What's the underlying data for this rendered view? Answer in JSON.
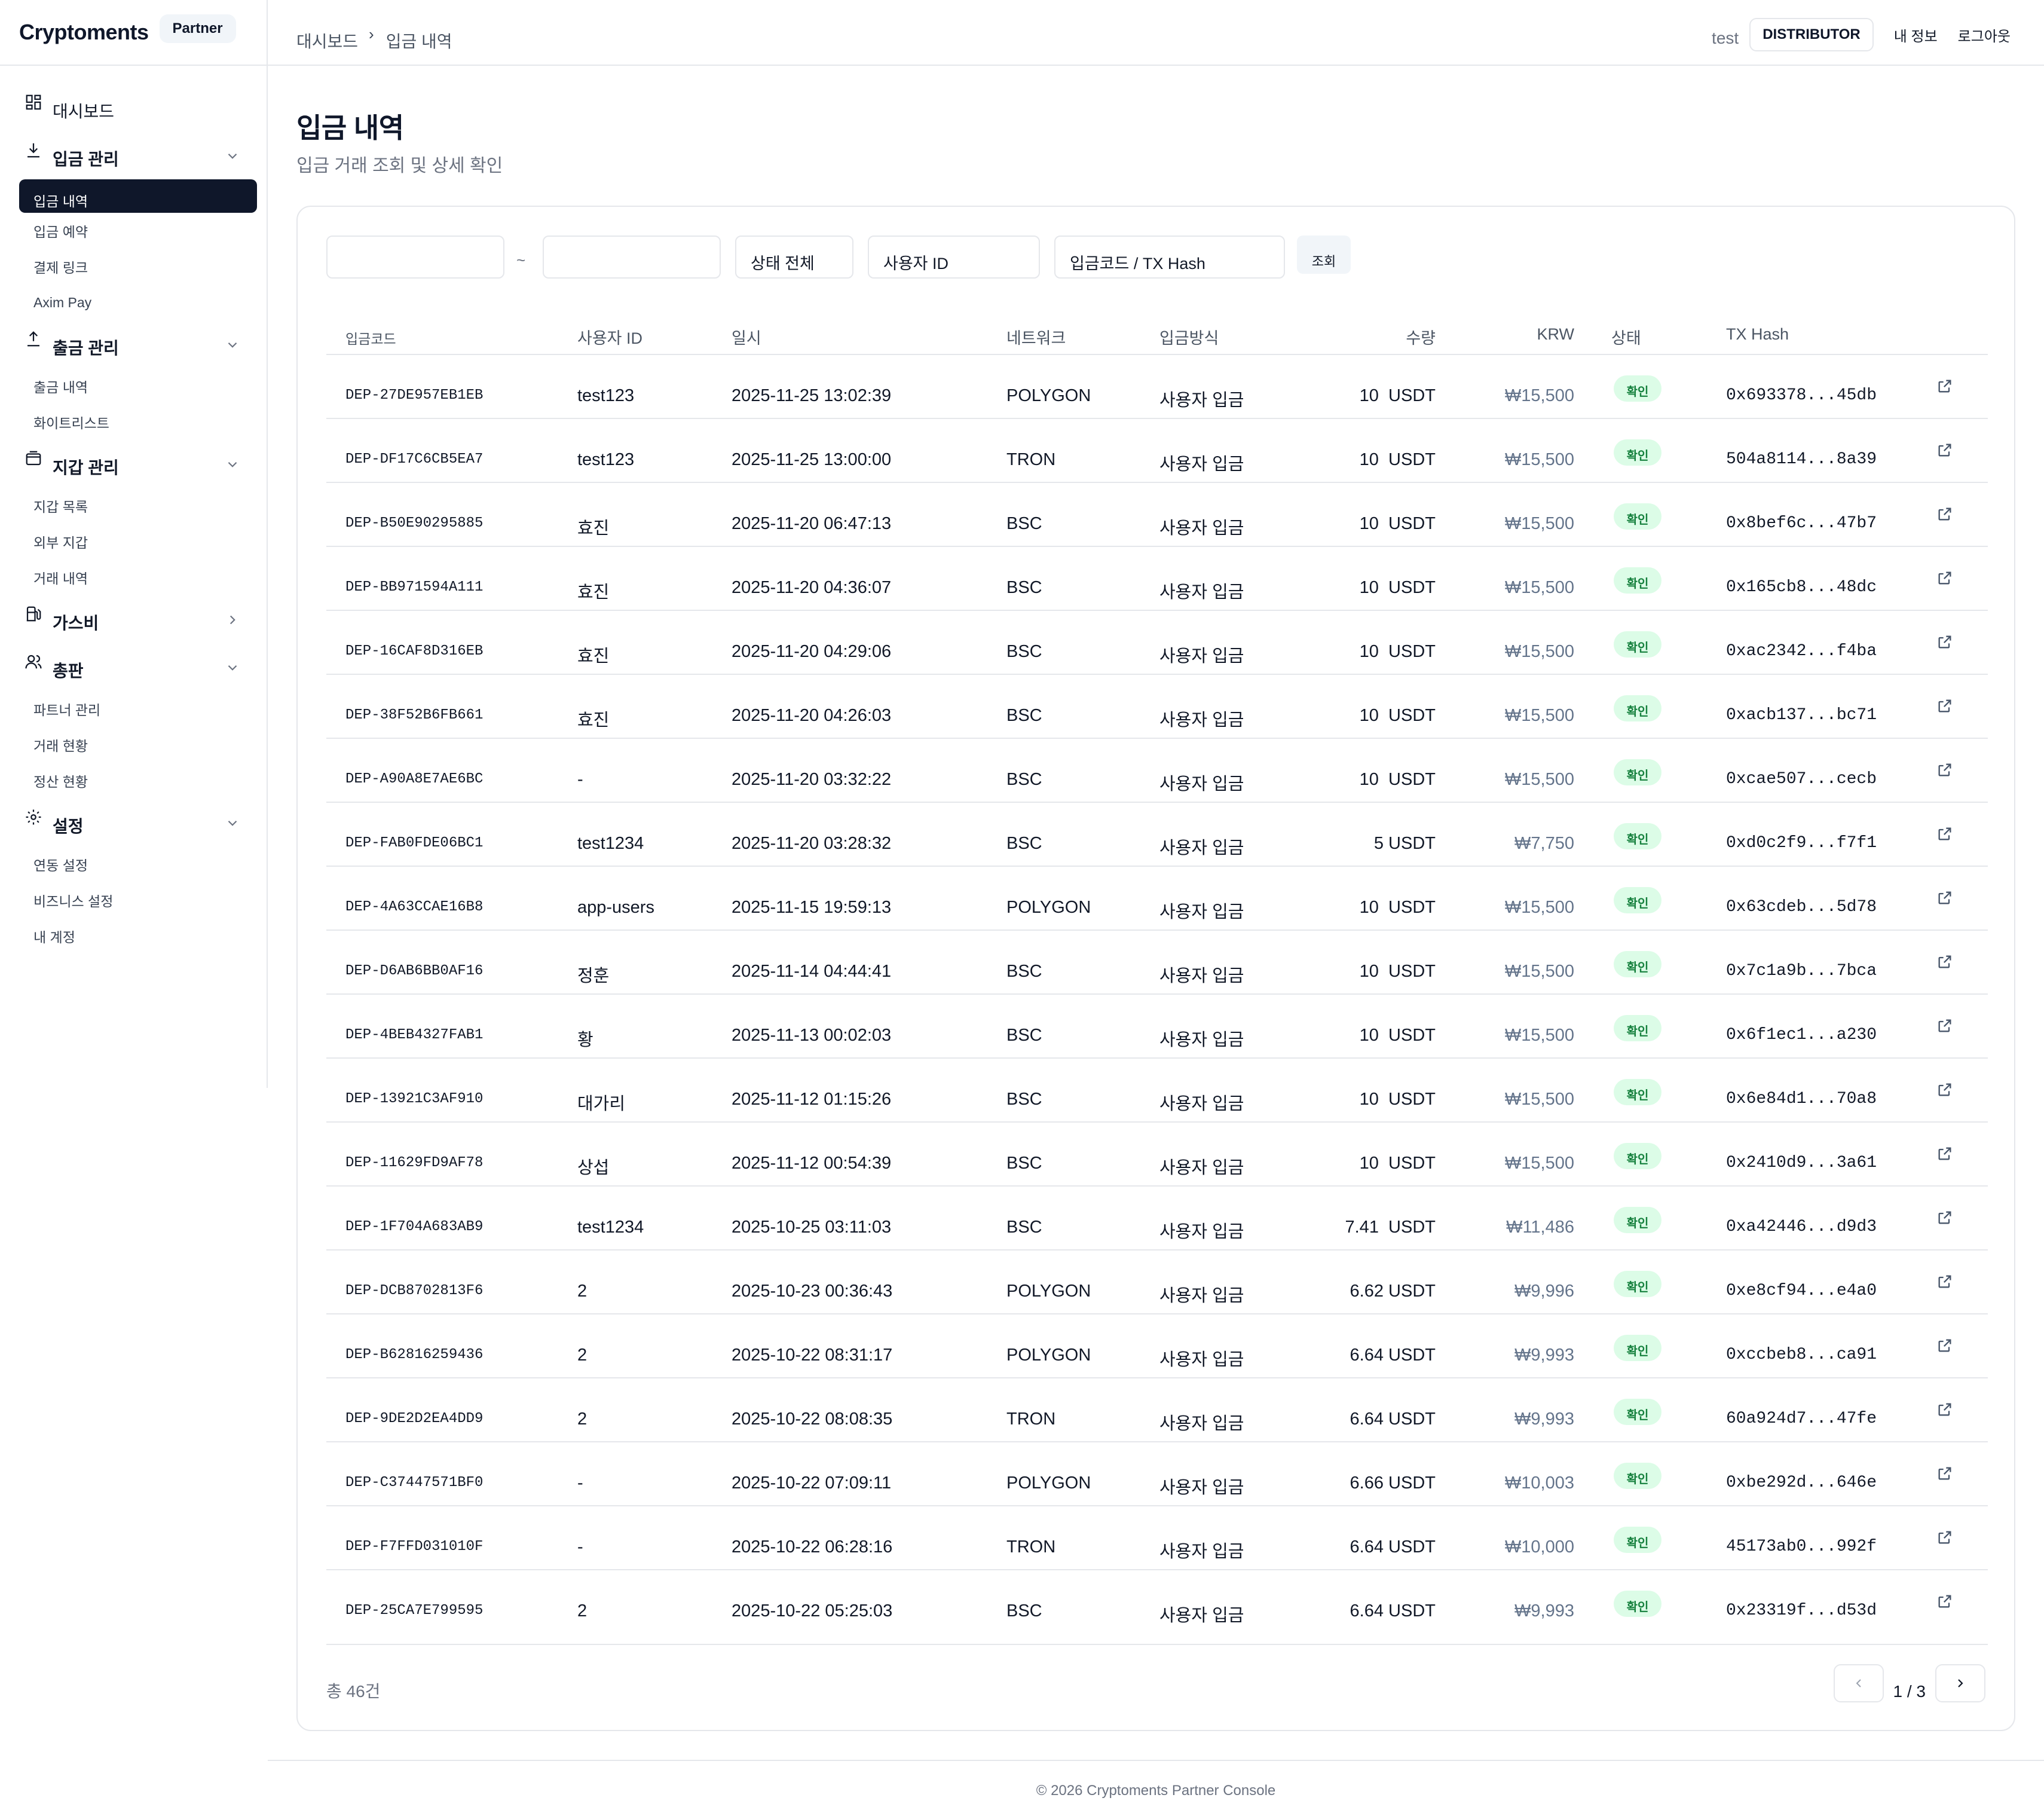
{
  "brand": {
    "name": "Cryptoments",
    "badge": "Partner"
  },
  "header": {
    "breadcrumb": [
      "대시보드",
      "입금 내역"
    ],
    "user": "test",
    "role": "DISTRIBUTOR",
    "links": [
      "내 정보",
      "로그아웃"
    ]
  },
  "sidebar": {
    "dashboard": "대시보드",
    "deposit": {
      "label": "입금 관리",
      "items": [
        "입금 내역",
        "입금 예약",
        "결제 링크",
        "Axim Pay"
      ]
    },
    "withdraw": {
      "label": "출금 관리",
      "items": [
        "출금 내역",
        "화이트리스트"
      ]
    },
    "wallet": {
      "label": "지갑 관리",
      "items": [
        "지갑 목록",
        "외부 지갑",
        "거래 내역"
      ]
    },
    "gas": {
      "label": "가스비"
    },
    "dist": {
      "label": "총판",
      "items": [
        "파트너 관리",
        "거래 현황",
        "정산 현황"
      ]
    },
    "settings": {
      "label": "설정",
      "items": [
        "연동 설정",
        "비즈니스 설정",
        "내 계정"
      ]
    }
  },
  "page": {
    "title": "입금 내역",
    "subtitle": "입금 거래 조회 및 상세 확인"
  },
  "filters": {
    "date_from": "",
    "date_sep": "~",
    "date_to": "",
    "status": "상태 전체",
    "user_placeholder": "사용자 ID",
    "code_placeholder": "입금코드 / TX Hash",
    "search_label": "조회"
  },
  "table": {
    "headers": [
      "입금코드",
      "사용자 ID",
      "일시",
      "네트워크",
      "입금방식",
      "수량",
      "KRW",
      "상태",
      "TX Hash"
    ],
    "rows": [
      {
        "code": "DEP-27DE957EB1EB",
        "user": "test123",
        "time": "2025-11-25 13:02:39",
        "network": "POLYGON",
        "method": "사용자 입금",
        "amount": "10  USDT",
        "krw": "₩15,500",
        "status": "확인",
        "hash": "0x693378...45db"
      },
      {
        "code": "DEP-DF17C6CB5EA7",
        "user": "test123",
        "time": "2025-11-25 13:00:00",
        "network": "TRON",
        "method": "사용자 입금",
        "amount": "10  USDT",
        "krw": "₩15,500",
        "status": "확인",
        "hash": "504a8114...8a39"
      },
      {
        "code": "DEP-B50E90295885",
        "user": "효진",
        "time": "2025-11-20 06:47:13",
        "network": "BSC",
        "method": "사용자 입금",
        "amount": "10  USDT",
        "krw": "₩15,500",
        "status": "확인",
        "hash": "0x8bef6c...47b7"
      },
      {
        "code": "DEP-BB971594A111",
        "user": "효진",
        "time": "2025-11-20 04:36:07",
        "network": "BSC",
        "method": "사용자 입금",
        "amount": "10  USDT",
        "krw": "₩15,500",
        "status": "확인",
        "hash": "0x165cb8...48dc"
      },
      {
        "code": "DEP-16CAF8D316EB",
        "user": "효진",
        "time": "2025-11-20 04:29:06",
        "network": "BSC",
        "method": "사용자 입금",
        "amount": "10  USDT",
        "krw": "₩15,500",
        "status": "확인",
        "hash": "0xac2342...f4ba"
      },
      {
        "code": "DEP-38F52B6FB661",
        "user": "효진",
        "time": "2025-11-20 04:26:03",
        "network": "BSC",
        "method": "사용자 입금",
        "amount": "10  USDT",
        "krw": "₩15,500",
        "status": "확인",
        "hash": "0xacb137...bc71"
      },
      {
        "code": "DEP-A90A8E7AE6BC",
        "user": "-",
        "time": "2025-11-20 03:32:22",
        "network": "BSC",
        "method": "사용자 입금",
        "amount": "10  USDT",
        "krw": "₩15,500",
        "status": "확인",
        "hash": "0xcae507...cecb"
      },
      {
        "code": "DEP-FAB0FDE06BC1",
        "user": "test1234",
        "time": "2025-11-20 03:28:32",
        "network": "BSC",
        "method": "사용자 입금",
        "amount": "5 USDT",
        "krw": "₩7,750",
        "status": "확인",
        "hash": "0xd0c2f9...f7f1"
      },
      {
        "code": "DEP-4A63CCAE16B8",
        "user": "app-users",
        "time": "2025-11-15 19:59:13",
        "network": "POLYGON",
        "method": "사용자 입금",
        "amount": "10  USDT",
        "krw": "₩15,500",
        "status": "확인",
        "hash": "0x63cdeb...5d78"
      },
      {
        "code": "DEP-D6AB6BB0AF16",
        "user": "정훈",
        "time": "2025-11-14 04:44:41",
        "network": "BSC",
        "method": "사용자 입금",
        "amount": "10  USDT",
        "krw": "₩15,500",
        "status": "확인",
        "hash": "0x7c1a9b...7bca"
      },
      {
        "code": "DEP-4BEB4327FAB1",
        "user": "황",
        "time": "2025-11-13 00:02:03",
        "network": "BSC",
        "method": "사용자 입금",
        "amount": "10  USDT",
        "krw": "₩15,500",
        "status": "확인",
        "hash": "0x6f1ec1...a230"
      },
      {
        "code": "DEP-13921C3AF910",
        "user": "대가리",
        "time": "2025-11-12 01:15:26",
        "network": "BSC",
        "method": "사용자 입금",
        "amount": "10  USDT",
        "krw": "₩15,500",
        "status": "확인",
        "hash": "0x6e84d1...70a8"
      },
      {
        "code": "DEP-11629FD9AF78",
        "user": "상섭",
        "time": "2025-11-12 00:54:39",
        "network": "BSC",
        "method": "사용자 입금",
        "amount": "10  USDT",
        "krw": "₩15,500",
        "status": "확인",
        "hash": "0x2410d9...3a61"
      },
      {
        "code": "DEP-1F704A683AB9",
        "user": "test1234",
        "time": "2025-10-25 03:11:03",
        "network": "BSC",
        "method": "사용자 입금",
        "amount": "7.41  USDT",
        "krw": "₩11,486",
        "status": "확인",
        "hash": "0xa42446...d9d3"
      },
      {
        "code": "DEP-DCB8702813F6",
        "user": "2",
        "time": "2025-10-23 00:36:43",
        "network": "POLYGON",
        "method": "사용자 입금",
        "amount": "6.62 USDT",
        "krw": "₩9,996",
        "status": "확인",
        "hash": "0xe8cf94...e4a0"
      },
      {
        "code": "DEP-B62816259436",
        "user": "2",
        "time": "2025-10-22 08:31:17",
        "network": "POLYGON",
        "method": "사용자 입금",
        "amount": "6.64 USDT",
        "krw": "₩9,993",
        "status": "확인",
        "hash": "0xccbeb8...ca91"
      },
      {
        "code": "DEP-9DE2D2EA4DD9",
        "user": "2",
        "time": "2025-10-22 08:08:35",
        "network": "TRON",
        "method": "사용자 입금",
        "amount": "6.64 USDT",
        "krw": "₩9,993",
        "status": "확인",
        "hash": "60a924d7...47fe"
      },
      {
        "code": "DEP-C37447571BF0",
        "user": "-",
        "time": "2025-10-22 07:09:11",
        "network": "POLYGON",
        "method": "사용자 입금",
        "amount": "6.66 USDT",
        "krw": "₩10,003",
        "status": "확인",
        "hash": "0xbe292d...646e"
      },
      {
        "code": "DEP-F7FFD031010F",
        "user": "-",
        "time": "2025-10-22 06:28:16",
        "network": "TRON",
        "method": "사용자 입금",
        "amount": "6.64 USDT",
        "krw": "₩10,000",
        "status": "확인",
        "hash": "45173ab0...992f"
      },
      {
        "code": "DEP-25CA7E799595",
        "user": "2",
        "time": "2025-10-22 05:25:03",
        "network": "BSC",
        "method": "사용자 입금",
        "amount": "6.64 USDT",
        "krw": "₩9,993",
        "status": "확인",
        "hash": "0x23319f...d53d"
      }
    ]
  },
  "summary": {
    "total": "총 46건",
    "page": "1 / 3"
  },
  "footer": "© 2026 Cryptoments Partner Console"
}
